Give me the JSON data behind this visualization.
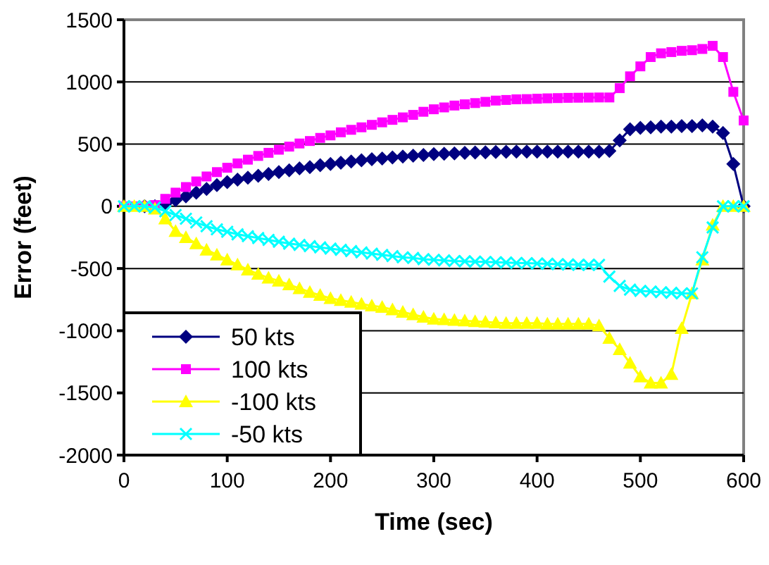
{
  "chart_data": {
    "type": "line",
    "xlabel": "Time (sec)",
    "ylabel": "Error (feet)",
    "xlim": [
      0,
      600
    ],
    "xticks": [
      0,
      100,
      200,
      300,
      400,
      500,
      600
    ],
    "ylim": [
      -2000,
      1500
    ],
    "yticks": [
      -2000,
      -1500,
      -1000,
      -500,
      0,
      500,
      1000,
      1500
    ],
    "grid": "y",
    "legend": "bottom left",
    "x": [
      0,
      10,
      20,
      30,
      40,
      50,
      60,
      70,
      80,
      90,
      100,
      110,
      120,
      130,
      140,
      150,
      160,
      170,
      180,
      190,
      200,
      210,
      220,
      230,
      240,
      250,
      260,
      270,
      280,
      290,
      300,
      310,
      320,
      330,
      340,
      350,
      360,
      370,
      380,
      390,
      400,
      410,
      420,
      430,
      440,
      450,
      460,
      470,
      480,
      490,
      500,
      510,
      520,
      530,
      540,
      550,
      560,
      570,
      580,
      590,
      600
    ],
    "series": [
      {
        "name": "50 kts",
        "color": "#000080",
        "marker": "diamond",
        "values": [
          null,
          null,
          0,
          0,
          20,
          50,
          80,
          110,
          140,
          170,
          195,
          215,
          230,
          245,
          260,
          275,
          290,
          305,
          315,
          330,
          340,
          350,
          360,
          370,
          378,
          385,
          393,
          400,
          407,
          413,
          420,
          423,
          426,
          429,
          432,
          434,
          436,
          438,
          439,
          440,
          440,
          440,
          440,
          440,
          440,
          440,
          440,
          445,
          530,
          620,
          630,
          635,
          640,
          640,
          645,
          645,
          650,
          640,
          590,
          340,
          0
        ]
      },
      {
        "name": "100 kts",
        "color": "#ff00ff",
        "marker": "square",
        "values": [
          0,
          0,
          0,
          10,
          60,
          110,
          155,
          200,
          240,
          275,
          310,
          345,
          375,
          405,
          430,
          455,
          480,
          505,
          525,
          550,
          570,
          595,
          615,
          635,
          655,
          675,
          695,
          715,
          735,
          760,
          780,
          795,
          810,
          820,
          830,
          840,
          850,
          855,
          860,
          862,
          865,
          868,
          870,
          872,
          873,
          874,
          875,
          875,
          950,
          1045,
          1125,
          1200,
          1230,
          1240,
          1250,
          1255,
          1265,
          1290,
          1200,
          920,
          690
        ]
      },
      {
        "name": "-100 kts",
        "color": "#ffff00",
        "marker": "triangle",
        "values": [
          0,
          0,
          0,
          -20,
          -100,
          -200,
          -250,
          -300,
          -350,
          -390,
          -430,
          -470,
          -510,
          -545,
          -575,
          -600,
          -630,
          -660,
          -690,
          -715,
          -740,
          -755,
          -770,
          -785,
          -800,
          -810,
          -830,
          -850,
          -870,
          -890,
          -905,
          -910,
          -915,
          -920,
          -925,
          -930,
          -935,
          -940,
          -940,
          -940,
          -940,
          -945,
          -945,
          -945,
          -945,
          -945,
          -960,
          -1060,
          -1150,
          -1260,
          -1370,
          -1420,
          -1420,
          -1350,
          -980,
          -700,
          -430,
          -150,
          0,
          0,
          0
        ]
      },
      {
        "name": "-50 kts",
        "color": "#00ffff",
        "marker": "cross",
        "values": [
          0,
          0,
          0,
          -10,
          -40,
          -70,
          -100,
          -130,
          -160,
          -185,
          -205,
          -225,
          -240,
          -255,
          -270,
          -285,
          -300,
          -310,
          -320,
          -330,
          -340,
          -350,
          -360,
          -370,
          -380,
          -390,
          -400,
          -410,
          -415,
          -425,
          -430,
          -435,
          -440,
          -442,
          -445,
          -447,
          -450,
          -452,
          -455,
          -457,
          -460,
          -462,
          -465,
          -467,
          -470,
          -470,
          -470,
          -565,
          -640,
          -670,
          -680,
          -685,
          -690,
          -695,
          -700,
          -700,
          -410,
          -170,
          0,
          0,
          0
        ]
      }
    ]
  }
}
